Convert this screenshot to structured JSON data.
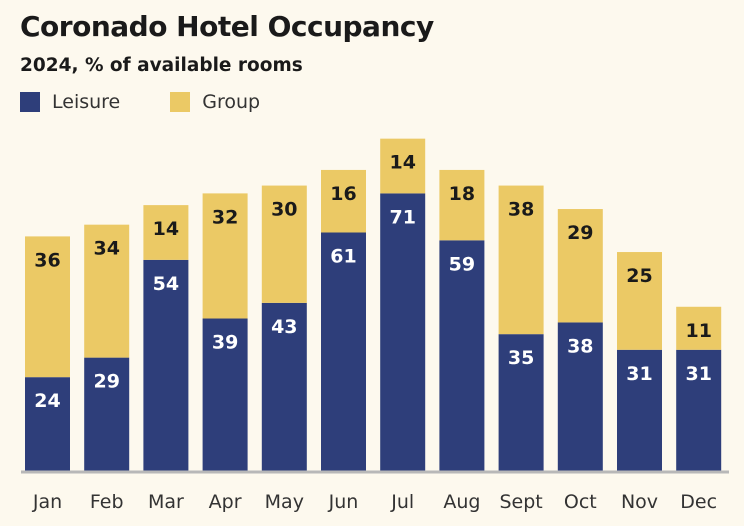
{
  "chart_data": {
    "type": "bar",
    "stacked": true,
    "title": "Coronado Hotel Occupancy",
    "subtitle": "2024, % of available rooms",
    "xlabel": "",
    "ylabel": "",
    "ylim": [
      0,
      90
    ],
    "grid": false,
    "legend_placement": "top-left",
    "categories": [
      "Jan",
      "Feb",
      "Mar",
      "Apr",
      "May",
      "Jun",
      "Jul",
      "Aug",
      "Sept",
      "Oct",
      "Nov",
      "Dec"
    ],
    "series": [
      {
        "name": "Leisure",
        "color": "#2e3e7a",
        "label_color": "#ffffff",
        "values": [
          24,
          29,
          54,
          39,
          43,
          61,
          71,
          59,
          35,
          38,
          31,
          31
        ]
      },
      {
        "name": "Group",
        "color": "#ebc965",
        "label_color": "#1a1a1a",
        "values": [
          36,
          34,
          14,
          32,
          30,
          16,
          14,
          18,
          38,
          29,
          25,
          11
        ]
      }
    ]
  }
}
